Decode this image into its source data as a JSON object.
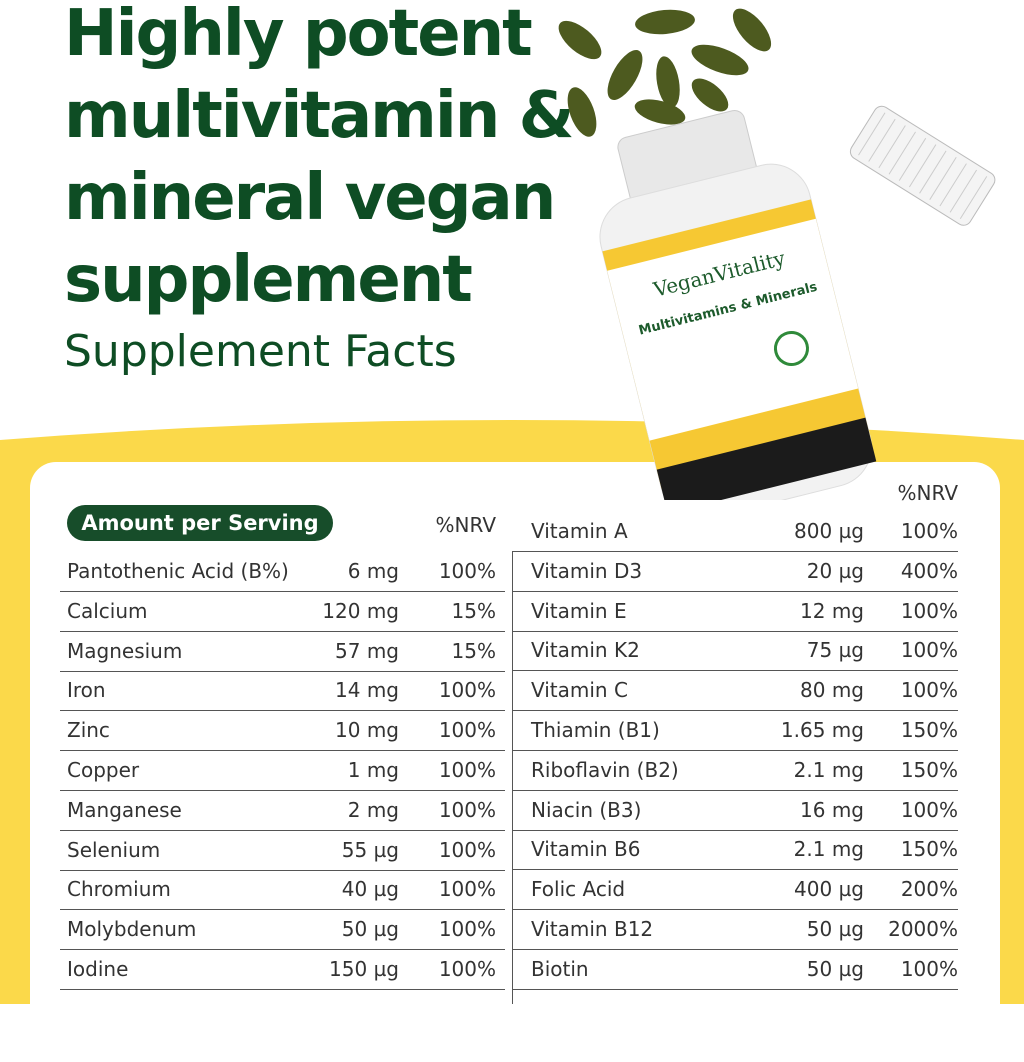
{
  "header": {
    "title_lines": [
      "Highly potent",
      "multivitamin &",
      "mineral vegan",
      "supplement"
    ],
    "subtitle": "Supplement Facts"
  },
  "product": {
    "brand": "VeganVitality",
    "name": "Multivitamins & Minerals"
  },
  "left_table": {
    "header": "Amount per Serving",
    "nrv_header": "%NRV",
    "rows": [
      [
        "Pantothenic Acid (B%)",
        "6 mg",
        "100%"
      ],
      [
        "Calcium",
        "120 mg",
        "15%"
      ],
      [
        "Magnesium",
        "57 mg",
        "15%"
      ],
      [
        "Iron",
        "14  mg",
        "100%"
      ],
      [
        "Zinc",
        "10 mg",
        "100%"
      ],
      [
        "Copper",
        "1 mg",
        "100%"
      ],
      [
        "Manganese",
        "2 mg",
        "100%"
      ],
      [
        "Selenium",
        "55 µg",
        "100%"
      ],
      [
        "Chromium",
        "40 µg",
        "100%"
      ],
      [
        "Molybdenum",
        "50 µg",
        "100%"
      ],
      [
        "Iodine",
        "150 µg",
        "100%"
      ]
    ]
  },
  "right_table": {
    "nrv_header": "%NRV",
    "rows": [
      [
        "Vitamin A",
        "800 µg",
        "100%"
      ],
      [
        "Vitamin D3",
        "20 µg",
        "400%"
      ],
      [
        "Vitamin E",
        "12 mg",
        "100%"
      ],
      [
        "Vitamin K2",
        "75 µg",
        "100%"
      ],
      [
        "Vitamin C",
        "80 mg",
        "100%"
      ],
      [
        "Thiamin (B1)",
        "1.65 mg",
        "150%"
      ],
      [
        "Riboflavin (B2)",
        "2.1 mg",
        "150%"
      ],
      [
        "Niacin (B3)",
        "16 mg",
        "100%"
      ],
      [
        "Vitamin B6",
        "2.1 mg",
        "150%"
      ],
      [
        "Folic Acid",
        "400 µg",
        "200%"
      ],
      [
        "Vitamin B12",
        "50 µg",
        "2000%"
      ],
      [
        "Biotin",
        "50 µg",
        "100%"
      ]
    ]
  }
}
